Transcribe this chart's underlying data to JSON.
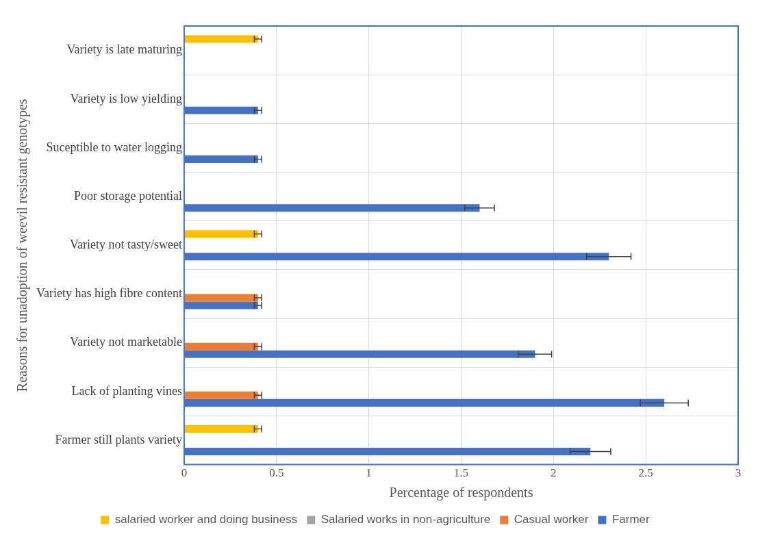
{
  "chart_data": {
    "type": "bar",
    "orientation": "horizontal",
    "xlabel": "Percentage of respondents",
    "ylabel": "Reasons for unadoption of weevil resistant genotypes",
    "categories": [
      "Variety is late maturing",
      "Variety is low yielding",
      "Suceptible to water logging",
      "Poor storage potential",
      "Variety not tasty/sweet",
      "Variety has high fibre content",
      "Variety not marketable",
      "Lack of planting vines",
      "Farmer still plants variety"
    ],
    "series": [
      {
        "name": "salaried worker and doing business",
        "color": "#ffc000",
        "values": [
          0.4,
          null,
          null,
          null,
          0.4,
          null,
          null,
          null,
          0.4
        ],
        "errors": [
          0.02,
          null,
          null,
          null,
          0.02,
          null,
          null,
          null,
          0.02
        ]
      },
      {
        "name": "Salaried works in non-agriculture",
        "color": "#a5a5a5",
        "values": [
          null,
          null,
          null,
          null,
          null,
          null,
          null,
          null,
          null
        ]
      },
      {
        "name": "Casual worker",
        "color": "#ed7d31",
        "values": [
          null,
          null,
          null,
          null,
          null,
          0.4,
          0.4,
          0.4,
          null
        ],
        "errors": [
          null,
          null,
          null,
          null,
          null,
          0.02,
          0.02,
          0.02,
          null
        ]
      },
      {
        "name": "Farmer",
        "color": "#4472c4",
        "values": [
          null,
          0.4,
          0.4,
          1.6,
          2.3,
          0.4,
          1.9,
          2.6,
          2.2
        ],
        "errors": [
          null,
          0.02,
          0.02,
          0.08,
          0.12,
          0.02,
          0.09,
          0.13,
          0.11
        ]
      }
    ],
    "xlim": [
      0,
      3
    ],
    "xticks": [
      0,
      0.5,
      1,
      1.5,
      2,
      2.5,
      3
    ],
    "grid": true,
    "legend": "bottom"
  }
}
